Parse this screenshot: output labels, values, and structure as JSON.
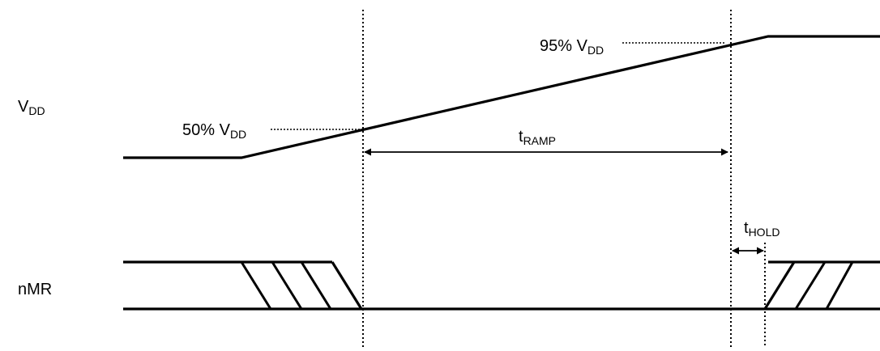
{
  "labels": {
    "vdd_signal": {
      "main": "V",
      "sub": "DD"
    },
    "nmr_signal": "nMR",
    "threshold_50": {
      "main": "50% V",
      "sub": "DD"
    },
    "threshold_95": {
      "main": "95% V",
      "sub": "DD"
    },
    "t_ramp": {
      "main": "t",
      "sub": "RAMP"
    },
    "t_hold": {
      "main": "t",
      "sub": "HOLD"
    }
  },
  "colors": {
    "line": "#000000",
    "background": "#ffffff"
  }
}
